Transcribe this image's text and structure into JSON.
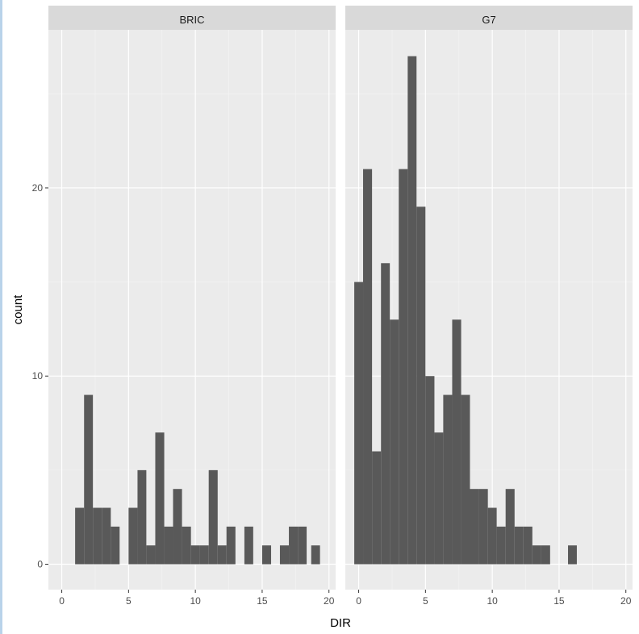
{
  "chart_data": {
    "type": "bar",
    "subtype": "faceted-histogram",
    "xlabel": "DIR",
    "ylabel": "count",
    "xlim": [
      -1.0,
      20.5
    ],
    "ylim": [
      -1.35,
      28.4
    ],
    "x_ticks": [
      0,
      5,
      10,
      15,
      20
    ],
    "y_ticks": [
      0,
      10,
      20
    ],
    "bin_width": 0.667,
    "bar_color": "#595959",
    "panel_background": "#ebebeb",
    "strip_background": "#d9d9d9",
    "grid": true,
    "facets": [
      {
        "name": "BRIC",
        "bins": [
          {
            "x0": 1.0,
            "x1": 1.67,
            "count": 3
          },
          {
            "x0": 1.67,
            "x1": 2.33,
            "count": 9
          },
          {
            "x0": 2.33,
            "x1": 3.0,
            "count": 3
          },
          {
            "x0": 3.0,
            "x1": 3.67,
            "count": 3
          },
          {
            "x0": 3.67,
            "x1": 4.33,
            "count": 2
          },
          {
            "x0": 5.0,
            "x1": 5.67,
            "count": 3
          },
          {
            "x0": 5.67,
            "x1": 6.33,
            "count": 5
          },
          {
            "x0": 6.33,
            "x1": 7.0,
            "count": 1
          },
          {
            "x0": 7.0,
            "x1": 7.67,
            "count": 7
          },
          {
            "x0": 7.67,
            "x1": 8.33,
            "count": 2
          },
          {
            "x0": 8.33,
            "x1": 9.0,
            "count": 4
          },
          {
            "x0": 9.0,
            "x1": 9.67,
            "count": 2
          },
          {
            "x0": 9.67,
            "x1": 10.33,
            "count": 1
          },
          {
            "x0": 10.33,
            "x1": 11.0,
            "count": 1
          },
          {
            "x0": 11.0,
            "x1": 11.67,
            "count": 5
          },
          {
            "x0": 11.67,
            "x1": 12.33,
            "count": 1
          },
          {
            "x0": 12.33,
            "x1": 13.0,
            "count": 2
          },
          {
            "x0": 13.67,
            "x1": 14.33,
            "count": 2
          },
          {
            "x0": 15.0,
            "x1": 15.67,
            "count": 1
          },
          {
            "x0": 16.33,
            "x1": 17.0,
            "count": 1
          },
          {
            "x0": 17.0,
            "x1": 17.67,
            "count": 2
          },
          {
            "x0": 17.67,
            "x1": 18.33,
            "count": 2
          },
          {
            "x0": 18.67,
            "x1": 19.33,
            "count": 1
          }
        ]
      },
      {
        "name": "G7",
        "bins": [
          {
            "x0": -0.33,
            "x1": 0.33,
            "count": 15
          },
          {
            "x0": 0.33,
            "x1": 1.0,
            "count": 21
          },
          {
            "x0": 1.0,
            "x1": 1.67,
            "count": 6
          },
          {
            "x0": 1.67,
            "x1": 2.33,
            "count": 16
          },
          {
            "x0": 2.33,
            "x1": 3.0,
            "count": 13
          },
          {
            "x0": 3.0,
            "x1": 3.67,
            "count": 21
          },
          {
            "x0": 3.67,
            "x1": 4.33,
            "count": 27
          },
          {
            "x0": 4.33,
            "x1": 5.0,
            "count": 19
          },
          {
            "x0": 5.0,
            "x1": 5.67,
            "count": 10
          },
          {
            "x0": 5.67,
            "x1": 6.33,
            "count": 7
          },
          {
            "x0": 6.33,
            "x1": 7.0,
            "count": 9
          },
          {
            "x0": 7.0,
            "x1": 7.67,
            "count": 13
          },
          {
            "x0": 7.67,
            "x1": 8.33,
            "count": 9
          },
          {
            "x0": 8.33,
            "x1": 9.0,
            "count": 4
          },
          {
            "x0": 9.0,
            "x1": 9.67,
            "count": 4
          },
          {
            "x0": 9.67,
            "x1": 10.33,
            "count": 3
          },
          {
            "x0": 10.33,
            "x1": 11.0,
            "count": 2
          },
          {
            "x0": 11.0,
            "x1": 11.67,
            "count": 4
          },
          {
            "x0": 11.67,
            "x1": 12.33,
            "count": 2
          },
          {
            "x0": 12.33,
            "x1": 13.0,
            "count": 2
          },
          {
            "x0": 13.0,
            "x1": 13.67,
            "count": 1
          },
          {
            "x0": 13.67,
            "x1": 14.33,
            "count": 1
          },
          {
            "x0": 15.67,
            "x1": 16.33,
            "count": 1
          }
        ]
      }
    ]
  }
}
